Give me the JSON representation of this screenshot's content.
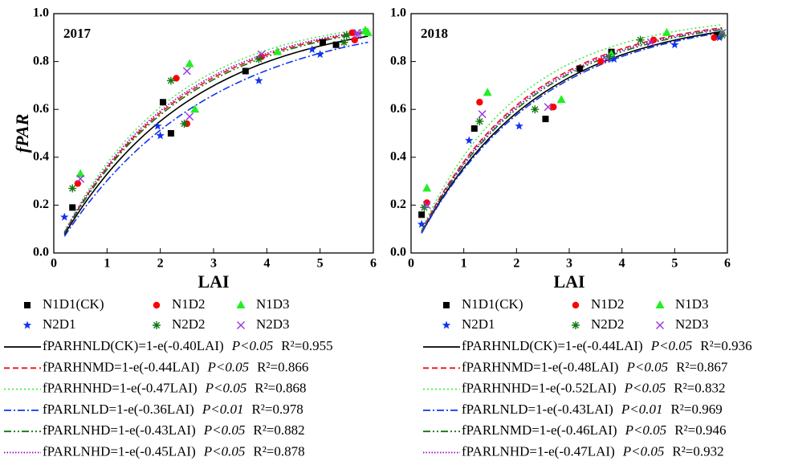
{
  "chart_data": [
    {
      "type": "scatter",
      "panel_label": "2017",
      "x_label": "LAI",
      "y_label": "fPAR",
      "xlim": [
        0,
        6
      ],
      "ylim": [
        0,
        1
      ],
      "xticks": [
        0,
        1,
        2,
        3,
        4,
        5,
        6
      ],
      "yticks": [
        {
          "value": 0,
          "label": "0.0"
        },
        0.2,
        0.4,
        0.6,
        0.8,
        {
          "value": 1,
          "label": "1.0"
        }
      ],
      "series": [
        {
          "name": "N1D1(CK)",
          "color": "#000000",
          "marker": "square",
          "x": [
            0.35,
            2.05,
            2.2,
            3.6,
            5.05,
            5.3
          ],
          "values": [
            0.19,
            0.63,
            0.5,
            0.76,
            0.88,
            0.87
          ]
        },
        {
          "name": "N1D2",
          "color": "#ff0000",
          "marker": "circle",
          "x": [
            0.45,
            2.3,
            2.5,
            3.9,
            5.65,
            5.6
          ],
          "values": [
            0.29,
            0.73,
            0.54,
            0.82,
            0.89,
            0.92
          ]
        },
        {
          "name": "N1D3",
          "color": "#22ee22",
          "marker": "triangle",
          "x": [
            0.5,
            2.55,
            2.65,
            4.2,
            5.85,
            5.9
          ],
          "values": [
            0.33,
            0.79,
            0.6,
            0.84,
            0.93,
            0.92
          ]
        },
        {
          "name": "N2D1",
          "color": "#1133ee",
          "marker": "star",
          "x": [
            0.2,
            1.95,
            2.0,
            3.85,
            4.85,
            5.0
          ],
          "values": [
            0.15,
            0.53,
            0.49,
            0.72,
            0.85,
            0.83
          ]
        },
        {
          "name": "N2D2",
          "color": "#117711",
          "marker": "asterisk",
          "x": [
            0.35,
            2.2,
            2.45,
            3.85,
            5.45,
            5.5
          ],
          "values": [
            0.27,
            0.72,
            0.54,
            0.81,
            0.88,
            0.91
          ]
        },
        {
          "name": "N2D3",
          "color": "#9933dd",
          "marker": "cross",
          "x": [
            0.5,
            2.5,
            2.55,
            3.9,
            5.7,
            5.7
          ],
          "values": [
            0.31,
            0.76,
            0.57,
            0.83,
            0.91,
            0.92
          ]
        }
      ],
      "fits": [
        {
          "name": "fPARHNLD(CK)=1-e(-0.40LAI)",
          "k": 0.4,
          "p": "P<0.05",
          "r2": "R²=0.955",
          "color": "#000000",
          "dash": "solid"
        },
        {
          "name": "fPARHNMD=1-e(-0.44LAI)",
          "k": 0.44,
          "p": "P<0.05",
          "r2": "R²=0.866",
          "color": "#ee1111",
          "dash": "dash"
        },
        {
          "name": "fPARHNHD=1-e(-0.47LAI)",
          "k": 0.47,
          "p": "P<0.05",
          "r2": "R²=0.868",
          "color": "#44ee44",
          "dash": "dot"
        },
        {
          "name": "fPARLNLD=1-e(-0.36LAI)",
          "k": 0.36,
          "p": "P<0.01",
          "r2": "R²=0.978",
          "color": "#1133ee",
          "dash": "dashdot"
        },
        {
          "name": "fPARLNHD=1-e(-0.43LAI)",
          "k": 0.43,
          "p": "P<0.05",
          "r2": "R²=0.882",
          "color": "#117711",
          "dash": "dashdotdot"
        },
        {
          "name": "fPARLNHD=1-e(-0.45LAI)",
          "k": 0.45,
          "p": "P<0.05",
          "r2": "R²=0.878",
          "color": "#9900cc",
          "dash": "shortdot"
        }
      ]
    },
    {
      "type": "scatter",
      "panel_label": "2018",
      "x_label": "LAI",
      "xlim": [
        0,
        6
      ],
      "ylim": [
        0,
        1
      ],
      "xticks": [
        0,
        1,
        2,
        3,
        4,
        5,
        6
      ],
      "yticks": [
        {
          "value": 0,
          "label": "0.0"
        },
        0.2,
        0.4,
        0.6,
        0.8,
        {
          "value": 1,
          "label": "1.0"
        }
      ],
      "series": [
        {
          "name": "N1D1(CK)",
          "color": "#000000",
          "marker": "square",
          "x": [
            0.2,
            1.2,
            2.55,
            3.2,
            3.8,
            5.8
          ],
          "values": [
            0.16,
            0.52,
            0.56,
            0.77,
            0.84,
            0.91
          ]
        },
        {
          "name": "N1D2",
          "color": "#ff0000",
          "marker": "circle",
          "x": [
            0.3,
            1.3,
            2.7,
            3.6,
            4.6,
            5.75
          ],
          "values": [
            0.21,
            0.63,
            0.61,
            0.8,
            0.89,
            0.9
          ]
        },
        {
          "name": "N1D3",
          "color": "#22ee22",
          "marker": "triangle",
          "x": [
            0.3,
            1.45,
            2.85,
            3.8,
            4.85,
            5.9
          ],
          "values": [
            0.27,
            0.67,
            0.64,
            0.83,
            0.92,
            0.92
          ]
        },
        {
          "name": "N2D1",
          "color": "#1133ee",
          "marker": "star",
          "x": [
            0.2,
            1.1,
            2.05,
            3.85,
            5.0,
            5.85
          ],
          "values": [
            0.12,
            0.47,
            0.53,
            0.81,
            0.87,
            0.9
          ]
        },
        {
          "name": "N2D2",
          "color": "#117711",
          "marker": "asterisk",
          "x": [
            0.25,
            1.3,
            2.35,
            3.75,
            4.35,
            5.9
          ],
          "values": [
            0.19,
            0.55,
            0.6,
            0.82,
            0.89,
            0.91
          ]
        },
        {
          "name": "N2D3",
          "color": "#9933dd",
          "marker": "cross",
          "x": [
            0.3,
            1.35,
            2.6,
            3.7,
            4.55,
            5.9
          ],
          "values": [
            0.2,
            0.58,
            0.61,
            0.81,
            0.88,
            0.92
          ]
        }
      ],
      "fits": [
        {
          "name": "fPARHNLD(CK)=1-e(-0.44LAI)",
          "k": 0.44,
          "p": "P<0.05",
          "r2": "R²=0.936",
          "color": "#000000",
          "dash": "solid"
        },
        {
          "name": "fPARHNMD=1-e(-0.48LAI)",
          "k": 0.48,
          "p": "P<0.05",
          "r2": "R²=0.867",
          "color": "#ee1111",
          "dash": "dash"
        },
        {
          "name": "fPARHNHD=1-e(-0.52LAI)",
          "k": 0.52,
          "p": "P<0.05",
          "r2": "R²=0.832",
          "color": "#44ee44",
          "dash": "dot"
        },
        {
          "name": "fPARLNLD=1-e(-0.43LAI)",
          "k": 0.43,
          "p": "P<0.01",
          "r2": "R²=0.969",
          "color": "#1133ee",
          "dash": "dashdot"
        },
        {
          "name": "fPARLNMD=1-e(-0.46LAI)",
          "k": 0.46,
          "p": "P<0.05",
          "r2": "R²=0.946",
          "color": "#117711",
          "dash": "dashdotdot"
        },
        {
          "name": "fPARLNHD=1-e(-0.47LAI)",
          "k": 0.47,
          "p": "P<0.05",
          "r2": "R²=0.932",
          "color": "#9900cc",
          "dash": "shortdot"
        }
      ]
    }
  ]
}
